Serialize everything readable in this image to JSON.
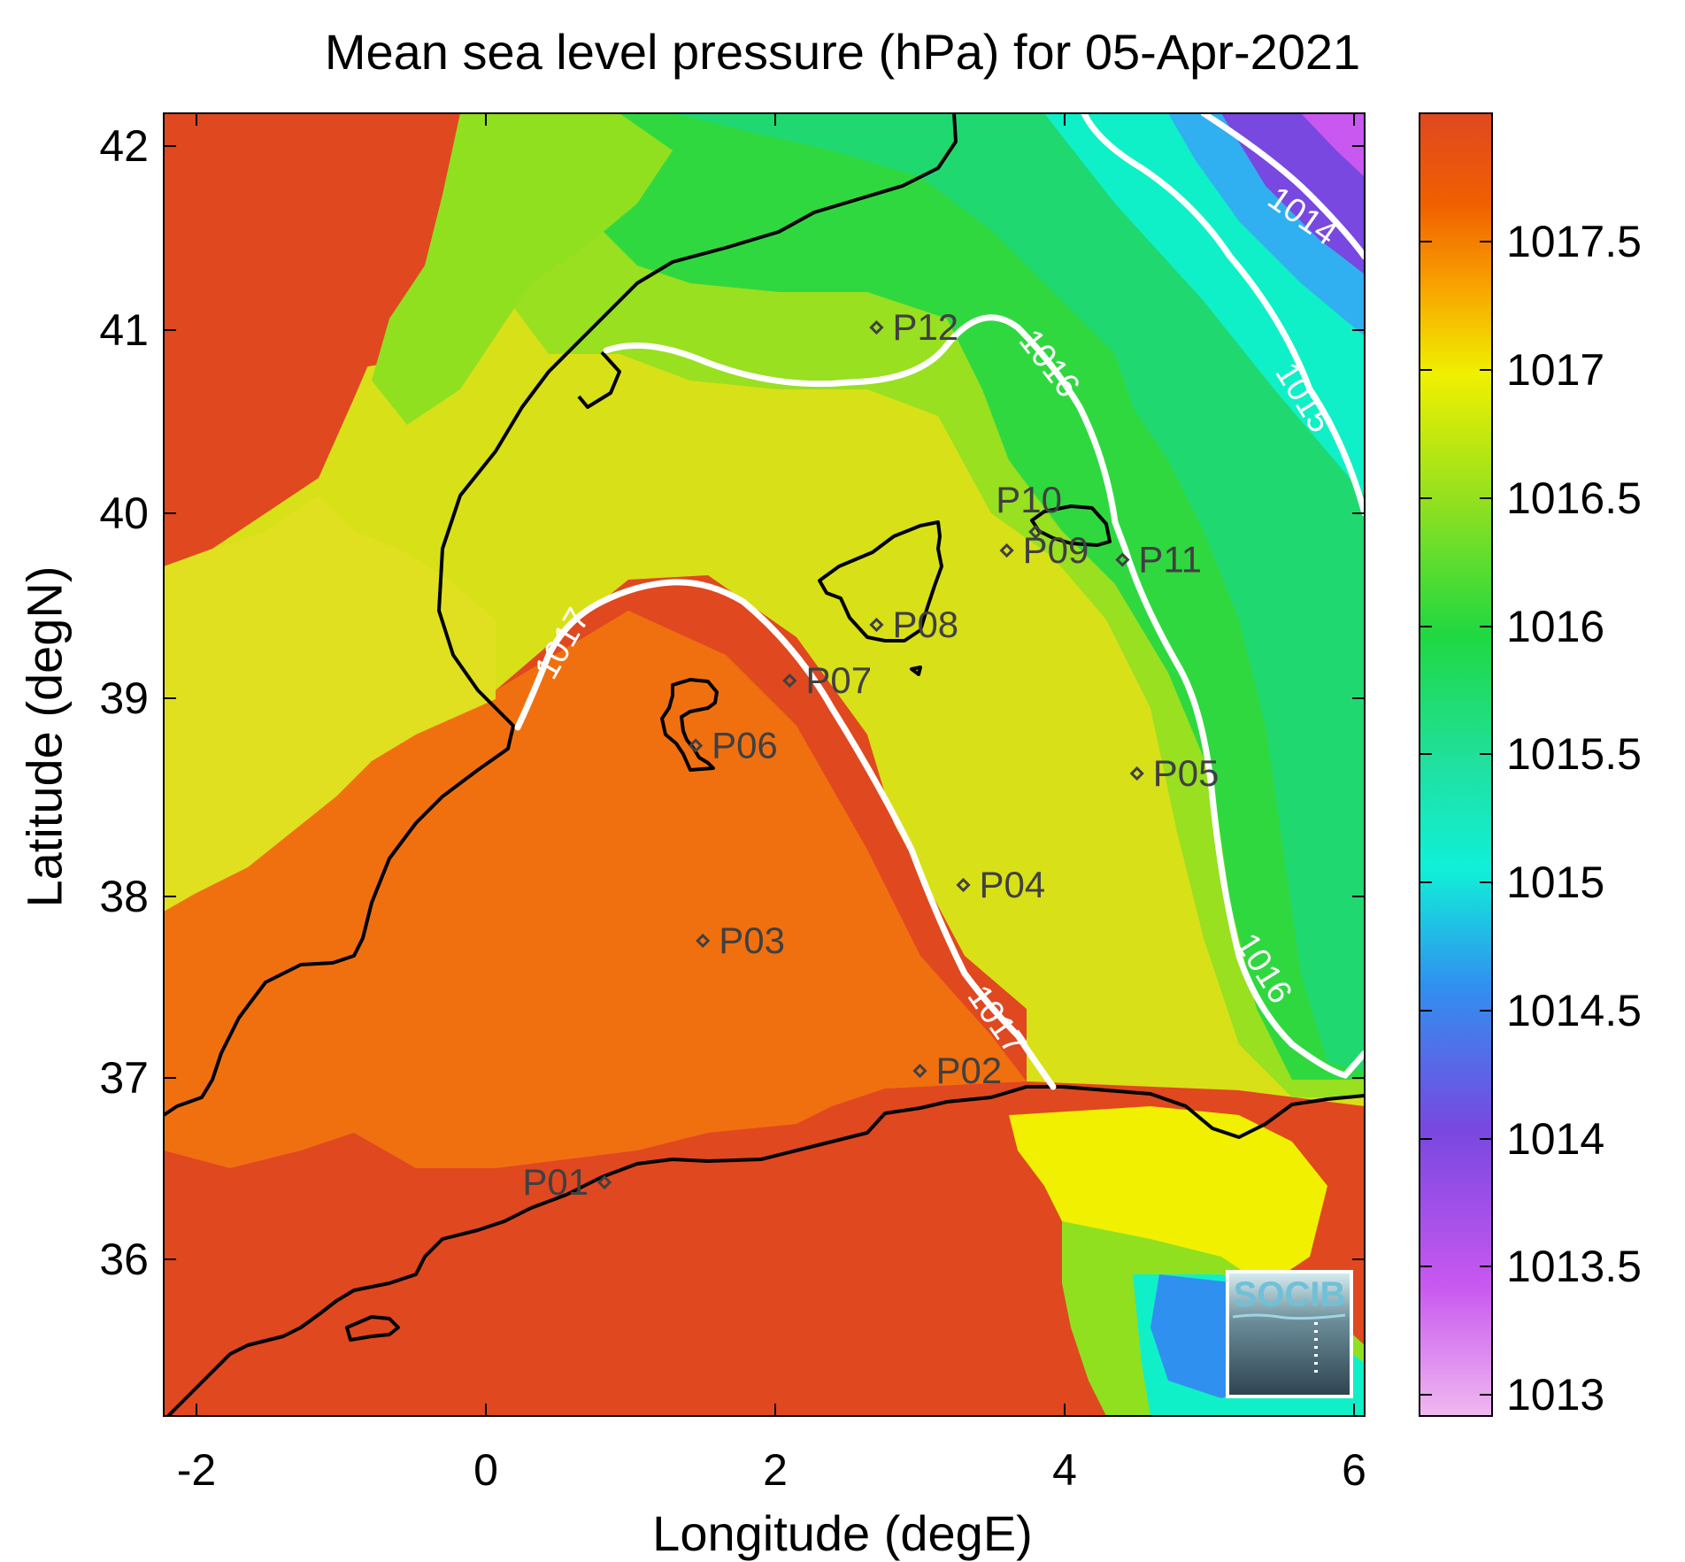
{
  "title": "Mean sea level pressure (hPa) for 05-Apr-2021",
  "x_axis": {
    "label": "Longitude (degE)",
    "ticks": [
      "-2",
      "0",
      "2",
      "4",
      "6"
    ],
    "range": [
      -2.25,
      6.05
    ]
  },
  "y_axis": {
    "label": "Latitude (degN)",
    "ticks": [
      "36",
      "37",
      "38",
      "39",
      "40",
      "41",
      "42"
    ],
    "range": [
      35.2,
      42.2
    ]
  },
  "colorbar": {
    "ticks": [
      "1013",
      "1013.5",
      "1014",
      "1014.5",
      "1015",
      "1015.5",
      "1016",
      "1016.5",
      "1017",
      "1017.5"
    ],
    "range": [
      1012.9,
      1018.0
    ],
    "palette": [
      "#f0b8f0",
      "#c858f0",
      "#7848e0",
      "#3090f0",
      "#10f0d8",
      "#20e0a0",
      "#20d840",
      "#90e020",
      "#f0f000",
      "#f8a000",
      "#f06000",
      "#e04820"
    ]
  },
  "contours": [
    {
      "level": "1014",
      "label": "1014"
    },
    {
      "level": "1015",
      "label": "1015"
    },
    {
      "level": "1016",
      "label": "1016"
    },
    {
      "level": "1017",
      "label": "1017"
    }
  ],
  "stations": [
    {
      "id": "P01",
      "lon": 0.82,
      "lat": 36.5
    },
    {
      "id": "P02",
      "lon": 3.0,
      "lat": 37.1
    },
    {
      "id": "P03",
      "lon": 1.5,
      "lat": 37.8
    },
    {
      "id": "P04",
      "lon": 3.3,
      "lat": 38.1
    },
    {
      "id": "P05",
      "lon": 4.5,
      "lat": 38.7
    },
    {
      "id": "P06",
      "lon": 1.45,
      "lat": 38.85
    },
    {
      "id": "P07",
      "lon": 2.1,
      "lat": 39.2
    },
    {
      "id": "P08",
      "lon": 2.7,
      "lat": 39.5
    },
    {
      "id": "P09",
      "lon": 3.6,
      "lat": 39.9
    },
    {
      "id": "P10",
      "lon": 3.8,
      "lat": 40.0
    },
    {
      "id": "P11",
      "lon": 4.4,
      "lat": 39.85
    },
    {
      "id": "P12",
      "lon": 2.7,
      "lat": 41.1
    }
  ],
  "logo": {
    "text": "SOCIB"
  }
}
